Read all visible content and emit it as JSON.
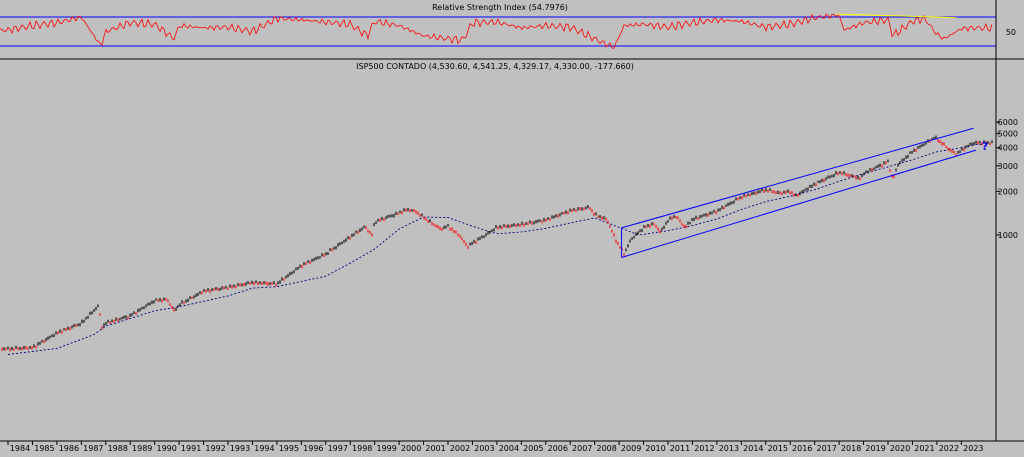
{
  "rsi_panel": {
    "title": "Relative Strength Index (54.7976)",
    "tick_label": "50",
    "line_color": "#ff0000",
    "band_color": "#0000ff",
    "trend_color": "#ffff00"
  },
  "price_panel": {
    "title": "ISP500 CONTADO (4,530.60, 4,541.25, 4,329.17, 4,330.00, -177.660)",
    "question_mark": "?",
    "channel_color": "#0000ff",
    "ma_color": "#000080",
    "up_bar_color": "#000000",
    "down_bar_color": "#ff0000"
  },
  "chart_data": [
    {
      "type": "line",
      "name": "rsi",
      "title": "Relative Strength Index (54.7976)",
      "y_ticks": [
        50
      ],
      "bands": [
        70,
        30
      ],
      "x": [
        1984,
        1985,
        1986,
        1987,
        1987.8,
        1988,
        1989,
        1990,
        1990.8,
        1991,
        1992,
        1993,
        1994,
        1995,
        1996,
        1997,
        1998,
        1998.7,
        1999,
        2000,
        2001,
        2002,
        2002.6,
        2003,
        2004,
        2005,
        2006,
        2007,
        2008,
        2008.3,
        2008.8,
        2009.2,
        2010,
        2011,
        2012,
        2013,
        2014,
        2015,
        2016,
        2017,
        2018,
        2018.2,
        2019,
        2020,
        2020.2,
        2021,
        2021.5,
        2022,
        2022.3,
        2023,
        2023.5
      ],
      "values": [
        52,
        58,
        62,
        70,
        30,
        50,
        62,
        60,
        40,
        58,
        55,
        56,
        50,
        68,
        66,
        63,
        60,
        44,
        64,
        58,
        44,
        40,
        38,
        62,
        63,
        55,
        58,
        56,
        40,
        35,
        28,
        58,
        60,
        56,
        62,
        66,
        64,
        56,
        60,
        69,
        73,
        52,
        62,
        66,
        44,
        64,
        68,
        46,
        40,
        54,
        55
      ],
      "trendline": [
        [
          2017.9,
          74
        ],
        [
          2022.8,
          69
        ]
      ]
    },
    {
      "type": "line",
      "title": "ISP500 CONTADO (4,530.60, 4,541.25, 4,329.17, 4,330.00, -177.660)",
      "y_scale": "log",
      "y_ticks": [
        1000,
        2000,
        3000,
        4000,
        5000,
        6000
      ],
      "x_ticks": [
        "1984",
        "1985",
        "1986",
        "1987",
        "1988",
        "1989",
        "1990",
        "1991",
        "1992",
        "1993",
        "1994",
        "1995",
        "1996",
        "1997",
        "1998",
        "1999",
        "2000",
        "2001",
        "2002",
        "2003",
        "2004",
        "2005",
        "2006",
        "2007",
        "2008",
        "2009",
        "2010",
        "2011",
        "2012",
        "2013",
        "2014",
        "2015",
        "2016",
        "2017",
        "2018",
        "2019",
        "2020",
        "2021",
        "2022",
        "2023"
      ],
      "x_range": [
        1984,
        2023.6
      ],
      "series": [
        {
          "role": "price",
          "x": [
            1984,
            1985,
            1986,
            1987,
            1987.7,
            1987.85,
            1988,
            1989,
            1990,
            1990.5,
            1990.8,
            1991,
            1992,
            1993,
            1994,
            1995,
            1996,
            1997,
            1998,
            1998.6,
            1998.9,
            1999,
            2000,
            2000.3,
            2000.7,
            2001,
            2001.7,
            2002,
            2002.5,
            2002.8,
            2003,
            2003.5,
            2004,
            2005,
            2006,
            2007,
            2007.8,
            2008,
            2008.5,
            2008.9,
            2009.2,
            2009.5,
            2010,
            2010.4,
            2010.7,
            2011,
            2011.3,
            2011.7,
            2012,
            2013,
            2014,
            2015,
            2015.6,
            2016,
            2016.2,
            2017,
            2018,
            2018.9,
            2019,
            2020,
            2020.2,
            2020.4,
            2021,
            2021.9,
            2022,
            2022.5,
            2022.8,
            2023,
            2023.5
          ],
          "values": [
            164,
            167,
            211,
            246,
            325,
            230,
            247,
            277,
            353,
            360,
            300,
            330,
            410,
            435,
            470,
            460,
            615,
            740,
            970,
            1140,
            1000,
            1230,
            1420,
            1500,
            1450,
            1320,
            1100,
            1150,
            980,
            830,
            880,
            990,
            1130,
            1180,
            1270,
            1470,
            1550,
            1380,
            1280,
            900,
            740,
            940,
            1120,
            1200,
            1050,
            1260,
            1360,
            1130,
            1280,
            1460,
            1830,
            2050,
            1940,
            2000,
            1850,
            2240,
            2700,
            2450,
            2660,
            3200,
            2400,
            3050,
            3760,
            4700,
            4600,
            3900,
            3600,
            3850,
            4330
          ]
        },
        {
          "role": "moving-average",
          "x": [
            1984,
            1986,
            1987.5,
            1988,
            1990,
            1991,
            1993,
            1994,
            1995,
            1997,
            1998,
            1999,
            2000,
            2001,
            2002,
            2003,
            2004,
            2005,
            2006,
            2007,
            2008,
            2009,
            2009.8,
            2010,
            2011,
            2012,
            2013,
            2014,
            2015,
            2016,
            2017,
            2018,
            2019,
            2020,
            2021,
            2022,
            2023,
            2023.6
          ],
          "values": [
            150,
            165,
            205,
            235,
            300,
            320,
            380,
            430,
            440,
            520,
            640,
            800,
            1100,
            1330,
            1320,
            1150,
            1020,
            1050,
            1110,
            1210,
            1310,
            1130,
            1000,
            1010,
            1070,
            1160,
            1290,
            1500,
            1700,
            1850,
            2050,
            2350,
            2650,
            2950,
            3300,
            3750,
            4000,
            4200
          ]
        },
        {
          "role": "channel-upper",
          "x": [
            2009.1,
            2023.5
          ],
          "values": [
            1120,
            5450
          ]
        },
        {
          "role": "channel-lower",
          "x": [
            2009.1,
            2023.6
          ],
          "values": [
            700,
            3850
          ]
        }
      ]
    }
  ]
}
